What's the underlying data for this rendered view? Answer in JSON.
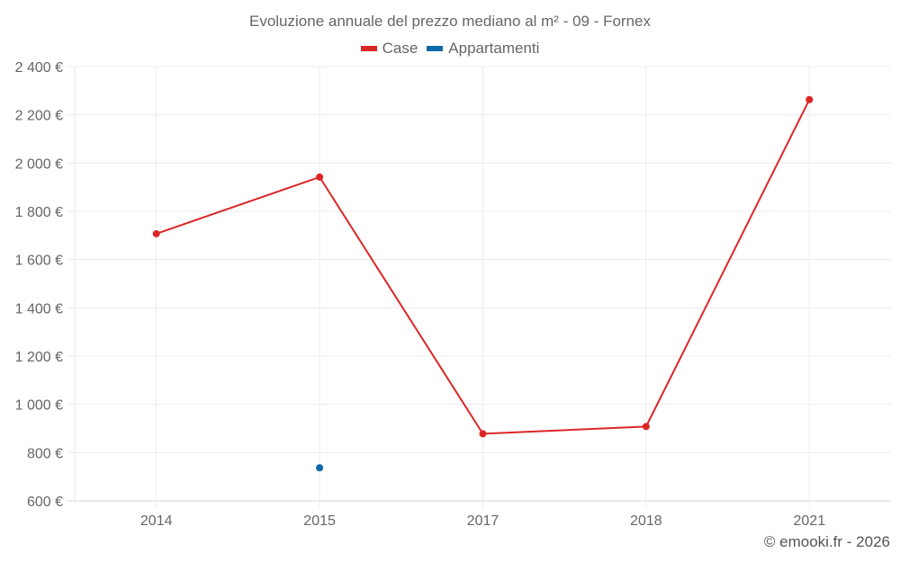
{
  "title": "Evoluzione annuale del prezzo mediano al m² - 09 - Fornex",
  "legend": [
    {
      "label": "Case",
      "color": "#dc2626"
    },
    {
      "label": "Appartamenti",
      "color": "#0d6aa8"
    }
  ],
  "credit": "© emooki.fr - 2026",
  "chart_data": {
    "type": "line",
    "title": "Evoluzione annuale del prezzo mediano al m² - 09 - Fornex",
    "xlabel": "",
    "ylabel": "",
    "categories": [
      "2014",
      "2015",
      "2017",
      "2018",
      "2021"
    ],
    "series": [
      {
        "name": "Case",
        "color": "#dc2626",
        "values": [
          1707,
          1942,
          878,
          908,
          2263
        ]
      },
      {
        "name": "Appartamenti",
        "color": "#0d6aa8",
        "values": [
          null,
          737,
          null,
          null,
          null
        ]
      }
    ],
    "ylim": [
      600,
      2400
    ],
    "yticks": [
      600,
      800,
      1000,
      1200,
      1400,
      1600,
      1800,
      2000,
      2200,
      2400
    ],
    "ytick_labels": [
      "600 €",
      "800 €",
      "1 000 €",
      "1 200 €",
      "1 400 €",
      "1 600 €",
      "1 800 €",
      "2 000 €",
      "2 200 €",
      "2 400 €"
    ],
    "grid": true,
    "legend_position": "top"
  }
}
